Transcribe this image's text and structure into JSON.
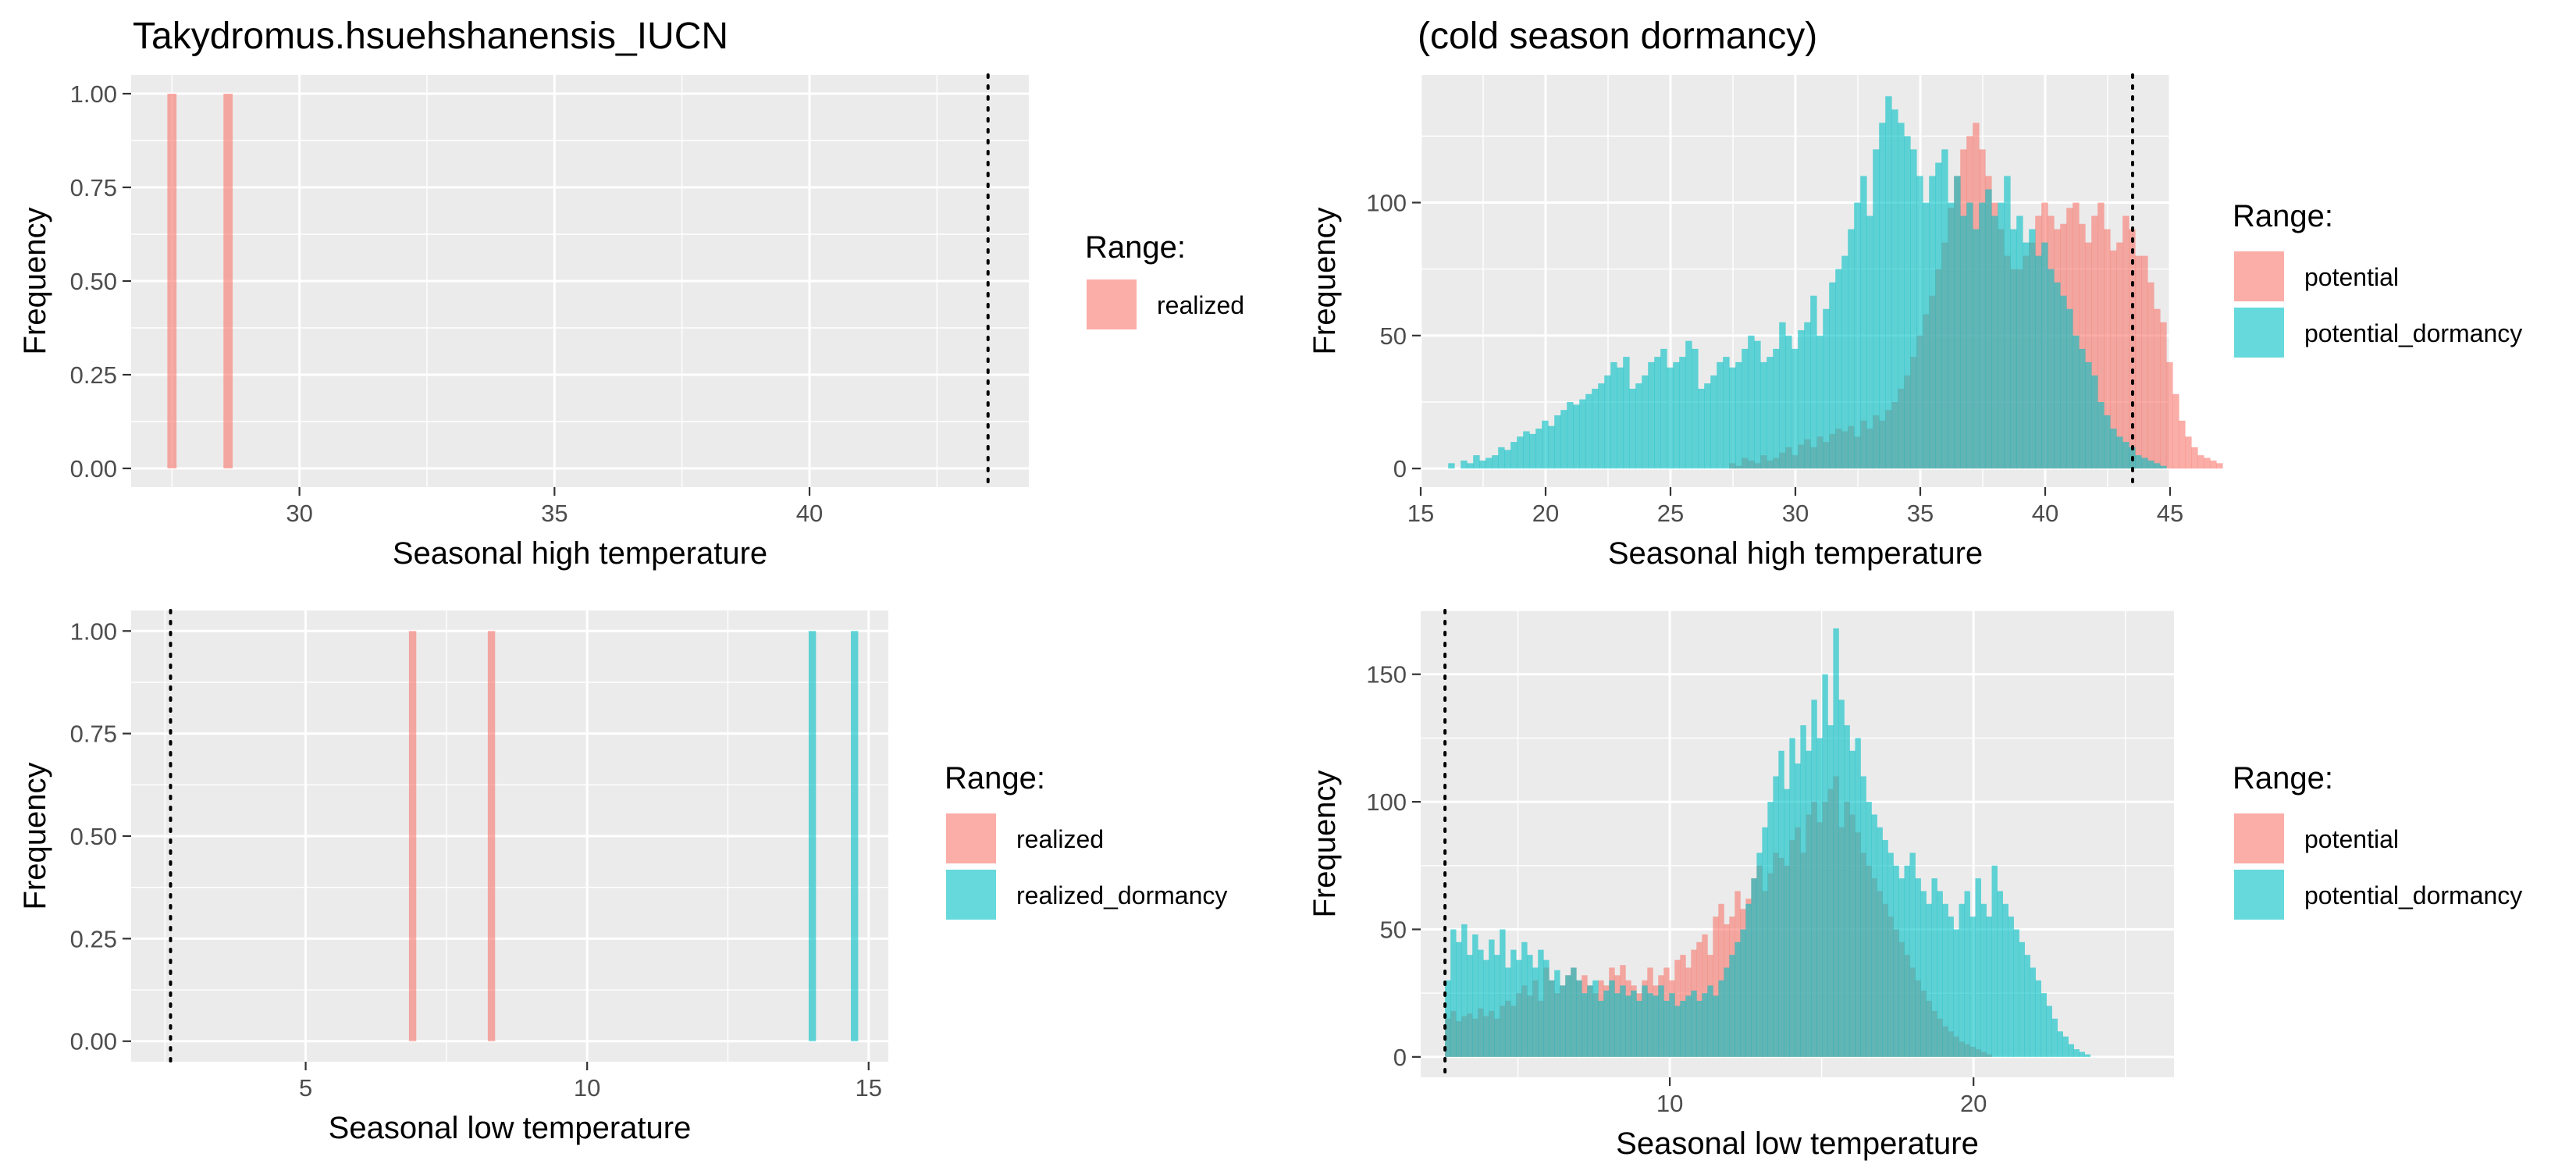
{
  "colors": {
    "red": "#F8766D",
    "teal": "#00BFC4",
    "panel": "#EBEBEB",
    "grid": "#FFFFFF"
  },
  "chart_data": [
    {
      "type": "bar",
      "title": "Takydromus.hsuehshanensis_IUCN",
      "xlabel": "Seasonal high temperature",
      "ylabel": "Frequency",
      "xlim": [
        26.7,
        44.3
      ],
      "ylim": [
        -0.05,
        1.05
      ],
      "x_ticks": [
        30,
        35,
        40
      ],
      "y_ticks": [
        0,
        0.25,
        0.5,
        0.75,
        1
      ],
      "y_tick_labels": [
        "0.00",
        "0.25",
        "0.50",
        "0.75",
        "1.00"
      ],
      "vline": 43.5,
      "bin_width": 0.18,
      "legend": {
        "title": "Range:",
        "position": "right",
        "entries": [
          "realized"
        ]
      },
      "series": [
        {
          "name": "realized",
          "color": "red",
          "x": [
            27.5,
            28.6
          ],
          "y": [
            1,
            1
          ]
        }
      ]
    },
    {
      "type": "histogram",
      "title": "(cold season dormancy)",
      "xlabel": "Seasonal high temperature",
      "ylabel": "Frequency",
      "xlim": [
        15,
        45
      ],
      "ylim": [
        -7,
        148
      ],
      "x_ticks": [
        15,
        20,
        25,
        30,
        35,
        40,
        45
      ],
      "y_ticks": [
        0,
        50,
        100
      ],
      "vline": 43.5,
      "bin_start": 16.1,
      "bin_width": 0.25,
      "legend": {
        "title": "Range:",
        "position": "right",
        "entries": [
          "potential",
          "potential_dormancy"
        ]
      },
      "series": [
        {
          "name": "potential",
          "color": "red",
          "counts": [
            0,
            0,
            0,
            0,
            0,
            0,
            0,
            0,
            0,
            0,
            0,
            0,
            0,
            0,
            0,
            0,
            0,
            0,
            0,
            0,
            0,
            0,
            0,
            0,
            0,
            0,
            0,
            0,
            0,
            0,
            0,
            0,
            0,
            0,
            0,
            0,
            0,
            0,
            0,
            0,
            0,
            0,
            0,
            0,
            0,
            2,
            1,
            4,
            3,
            2,
            5,
            3,
            4,
            6,
            8,
            5,
            9,
            11,
            8,
            12,
            10,
            13,
            15,
            14,
            16,
            12,
            18,
            15,
            20,
            18,
            22,
            25,
            30,
            35,
            42,
            50,
            58,
            65,
            75,
            85,
            98,
            110,
            120,
            125,
            130,
            120,
            110,
            100,
            90,
            80,
            75,
            75,
            80,
            85,
            95,
            100,
            95,
            90,
            92,
            98,
            100,
            92,
            85,
            95,
            100,
            90,
            82,
            85,
            95,
            90,
            80,
            80,
            70,
            60,
            55,
            40,
            28,
            18,
            12,
            8,
            5,
            4,
            3,
            2
          ]
        },
        {
          "name": "potential_dormancy",
          "color": "teal",
          "counts": [
            2,
            0,
            3,
            2,
            5,
            3,
            4,
            5,
            8,
            7,
            10,
            12,
            14,
            13,
            15,
            18,
            16,
            20,
            22,
            25,
            24,
            26,
            28,
            30,
            32,
            35,
            40,
            38,
            42,
            30,
            32,
            35,
            40,
            42,
            45,
            38,
            40,
            42,
            48,
            45,
            30,
            32,
            35,
            40,
            42,
            38,
            40,
            45,
            50,
            48,
            40,
            42,
            45,
            55,
            50,
            45,
            52,
            55,
            65,
            50,
            60,
            70,
            75,
            80,
            90,
            100,
            110,
            95,
            120,
            130,
            140,
            135,
            130,
            125,
            120,
            110,
            100,
            110,
            115,
            120,
            100,
            110,
            95,
            100,
            90,
            100,
            105,
            95,
            100,
            110,
            90,
            95,
            85,
            90,
            80,
            85,
            75,
            70,
            65,
            60,
            50,
            45,
            40,
            35,
            25,
            20,
            15,
            12,
            10,
            8,
            5,
            4,
            3,
            2,
            1
          ]
        }
      ]
    },
    {
      "type": "bar",
      "title": "",
      "xlabel": "Seasonal low temperature",
      "ylabel": "Frequency",
      "xlim": [
        1.9,
        15.35
      ],
      "ylim": [
        -0.05,
        1.05
      ],
      "x_ticks": [
        5,
        10,
        15
      ],
      "y_ticks": [
        0,
        0.25,
        0.5,
        0.75,
        1
      ],
      "y_tick_labels": [
        "0.00",
        "0.25",
        "0.50",
        "0.75",
        "1.00"
      ],
      "vline": 2.6,
      "bin_width": 0.13,
      "legend": {
        "title": "Range:",
        "position": "right",
        "entries": [
          "realized",
          "realized_dormancy"
        ]
      },
      "series": [
        {
          "name": "realized",
          "color": "red",
          "x": [
            6.9,
            8.3
          ],
          "y": [
            1,
            1
          ]
        },
        {
          "name": "realized_dormancy",
          "color": "teal",
          "x": [
            14.0,
            14.75
          ],
          "y": [
            1,
            1
          ]
        }
      ]
    },
    {
      "type": "histogram",
      "title": "",
      "xlabel": "Seasonal low temperature",
      "ylabel": "Frequency",
      "xlim": [
        1.8,
        26.6
      ],
      "ylim": [
        -8,
        175
      ],
      "x_ticks": [
        10,
        20
      ],
      "minor_x": [
        5,
        15,
        25
      ],
      "y_ticks": [
        0,
        50,
        100,
        150
      ],
      "vline": 2.6,
      "bin_start": 2.6,
      "bin_width": 0.18,
      "legend": {
        "title": "Range:",
        "position": "right",
        "entries": [
          "potential",
          "potential_dormancy"
        ]
      },
      "series": [
        {
          "name": "potential",
          "color": "red",
          "counts": [
            15,
            18,
            14,
            16,
            17,
            15,
            19,
            16,
            18,
            15,
            20,
            22,
            20,
            25,
            28,
            24,
            30,
            22,
            35,
            30,
            25,
            28,
            32,
            35,
            30,
            32,
            28,
            25,
            30,
            28,
            35,
            32,
            36,
            30,
            28,
            25,
            30,
            35,
            28,
            32,
            35,
            30,
            38,
            40,
            35,
            42,
            45,
            48,
            40,
            55,
            60,
            52,
            55,
            65,
            58,
            62,
            70,
            75,
            65,
            72,
            80,
            78,
            75,
            85,
            90,
            80,
            95,
            100,
            92,
            100,
            105,
            110,
            90,
            100,
            95,
            88,
            80,
            75,
            70,
            65,
            60,
            55,
            50,
            45,
            40,
            35,
            30,
            26,
            22,
            18,
            15,
            12,
            10,
            8,
            6,
            5,
            4,
            3,
            2,
            1,
            0,
            0,
            0,
            0,
            0,
            0,
            0,
            0,
            0,
            0,
            0,
            0,
            0,
            0,
            0,
            0,
            0,
            0,
            0,
            0,
            0,
            0,
            0,
            0,
            0,
            0,
            0
          ]
        },
        {
          "name": "potential_dormancy",
          "color": "teal",
          "counts": [
            30,
            50,
            45,
            52,
            40,
            48,
            42,
            38,
            46,
            40,
            50,
            35,
            42,
            38,
            45,
            40,
            35,
            42,
            38,
            30,
            34,
            28,
            32,
            35,
            30,
            25,
            28,
            30,
            22,
            26,
            30,
            25,
            28,
            24,
            26,
            22,
            28,
            25,
            24,
            28,
            22,
            25,
            20,
            22,
            24,
            26,
            22,
            25,
            28,
            24,
            30,
            35,
            40,
            45,
            50,
            60,
            70,
            80,
            90,
            100,
            110,
            120,
            105,
            125,
            115,
            130,
            120,
            140,
            125,
            150,
            130,
            168,
            140,
            130,
            120,
            125,
            110,
            100,
            95,
            90,
            85,
            80,
            75,
            70,
            75,
            80,
            70,
            65,
            60,
            70,
            65,
            60,
            55,
            50,
            60,
            65,
            55,
            70,
            60,
            55,
            75,
            65,
            60,
            55,
            50,
            45,
            40,
            35,
            30,
            25,
            20,
            15,
            10,
            8,
            5,
            3,
            2,
            1,
            0,
            0,
            0,
            0,
            0,
            0,
            0,
            0,
            0,
            0,
            0,
            0
          ]
        }
      ]
    }
  ]
}
